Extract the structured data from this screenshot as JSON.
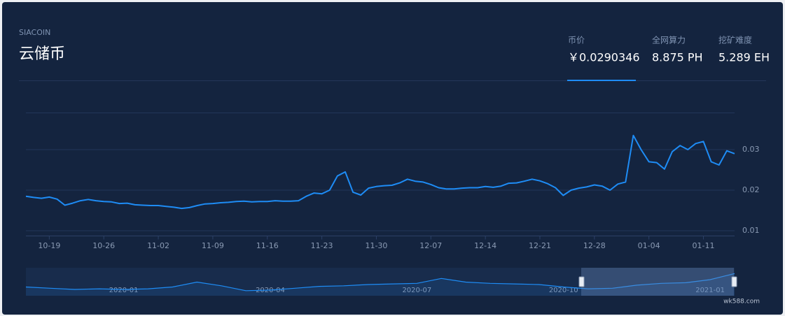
{
  "header": {
    "symbol": "SIACOIN",
    "name": "云储币",
    "stats": [
      {
        "label": "币价",
        "value": "￥0.0290346"
      },
      {
        "label": "全网算力",
        "value": "8.875 PH"
      },
      {
        "label": "挖矿难度",
        "value": "5.289 EH"
      }
    ]
  },
  "chart_data": [
    {
      "type": "line",
      "color": "#1e8cf5",
      "grid": true,
      "ylim": [
        0.01,
        0.04
      ],
      "yticks": [
        0.01,
        0.02,
        0.03
      ],
      "categories": [
        null,
        null,
        null,
        "10-19",
        null,
        null,
        null,
        null,
        null,
        null,
        "10-26",
        null,
        null,
        null,
        null,
        null,
        null,
        "11-02",
        null,
        null,
        null,
        null,
        null,
        null,
        "11-09",
        null,
        null,
        null,
        null,
        null,
        null,
        "11-16",
        null,
        null,
        null,
        null,
        null,
        null,
        "11-23",
        null,
        null,
        null,
        null,
        null,
        null,
        "11-30",
        null,
        null,
        null,
        null,
        null,
        null,
        "12-07",
        null,
        null,
        null,
        null,
        null,
        null,
        "12-14",
        null,
        null,
        null,
        null,
        null,
        null,
        "12-21",
        null,
        null,
        null,
        null,
        null,
        null,
        "12-28",
        null,
        null,
        null,
        null,
        null,
        null,
        "01-04",
        null,
        null,
        null,
        null,
        null,
        null,
        "01-11",
        null,
        null,
        null,
        null
      ],
      "values": [
        0.0185,
        0.0182,
        0.018,
        0.0183,
        0.0178,
        0.0163,
        0.0168,
        0.0174,
        0.0177,
        0.0174,
        0.0172,
        0.0171,
        0.0167,
        0.0168,
        0.0164,
        0.0163,
        0.0162,
        0.0162,
        0.016,
        0.0158,
        0.0155,
        0.0157,
        0.0162,
        0.0166,
        0.0167,
        0.0169,
        0.017,
        0.0172,
        0.0173,
        0.0171,
        0.0172,
        0.0172,
        0.0174,
        0.0173,
        0.0173,
        0.0174,
        0.0185,
        0.0193,
        0.0191,
        0.02,
        0.0235,
        0.0245,
        0.0195,
        0.0188,
        0.0205,
        0.0209,
        0.0211,
        0.0212,
        0.0218,
        0.0227,
        0.0222,
        0.022,
        0.0214,
        0.0206,
        0.0203,
        0.0203,
        0.0205,
        0.0206,
        0.0206,
        0.0209,
        0.0207,
        0.021,
        0.0217,
        0.0218,
        0.0222,
        0.0227,
        0.0223,
        0.0216,
        0.0206,
        0.0187,
        0.02,
        0.0205,
        0.0208,
        0.0213,
        0.021,
        0.02,
        0.0215,
        0.022,
        0.0335,
        0.03,
        0.027,
        0.0268,
        0.0252,
        0.0295,
        0.031,
        0.03,
        0.0315,
        0.032,
        0.027,
        0.0262,
        0.0297,
        0.029
      ]
    },
    {
      "type": "line",
      "color": "#1e8cf5",
      "ylim": [
        0.012,
        0.032
      ],
      "categories": [
        null,
        null,
        null,
        null,
        "2020-01",
        null,
        null,
        null,
        null,
        null,
        "2020-04",
        null,
        null,
        null,
        null,
        null,
        "2020-07",
        null,
        null,
        null,
        null,
        null,
        "2020-10",
        null,
        null,
        null,
        null,
        null,
        "2021-01",
        null
      ],
      "values": [
        0.018,
        0.017,
        0.016,
        0.0165,
        0.016,
        0.0165,
        0.018,
        0.022,
        0.019,
        0.015,
        0.0155,
        0.017,
        0.0185,
        0.019,
        0.02,
        0.0205,
        0.021,
        0.025,
        0.022,
        0.021,
        0.0205,
        0.02,
        0.018,
        0.0165,
        0.017,
        0.0195,
        0.021,
        0.0215,
        0.024,
        0.029
      ]
    }
  ],
  "footer": {
    "watermark": "wk588.com"
  }
}
